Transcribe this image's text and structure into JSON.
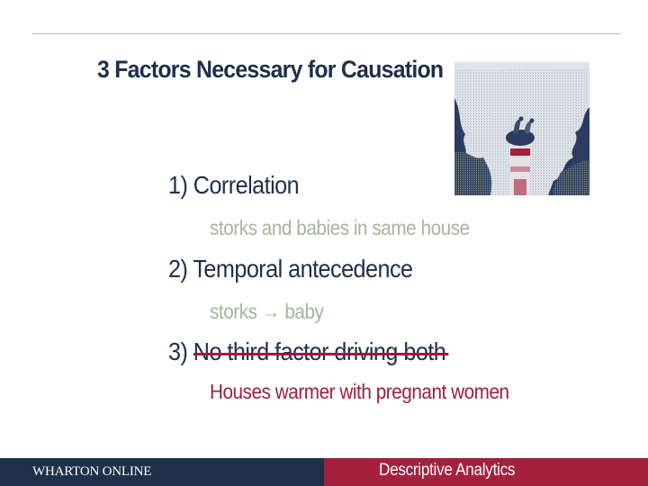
{
  "slide": {
    "title": "3 Factors Necessary for Causation",
    "factors": [
      {
        "number": "1)",
        "label": "Correlation",
        "example": "storks and babies in same house",
        "struck": false
      },
      {
        "number": "2)",
        "label": "Temporal antecedence",
        "example": "storks",
        "example_suffix": "baby",
        "struck": false
      },
      {
        "number": "3)",
        "label": "No third factor driving both",
        "example": "Houses warmer with pregnant women",
        "struck": true
      }
    ],
    "arrow_glyph": "→"
  },
  "footer": {
    "brand": "WHARTON ONLINE",
    "course": "Descriptive Analytics",
    "left_color": "#1f3049",
    "right_color": "#a5203d"
  },
  "colors": {
    "title": "#1f2f4a",
    "example_muted": "#a7b49a",
    "example_highlight": "#9c1f3a",
    "strike": "#a3173c"
  }
}
